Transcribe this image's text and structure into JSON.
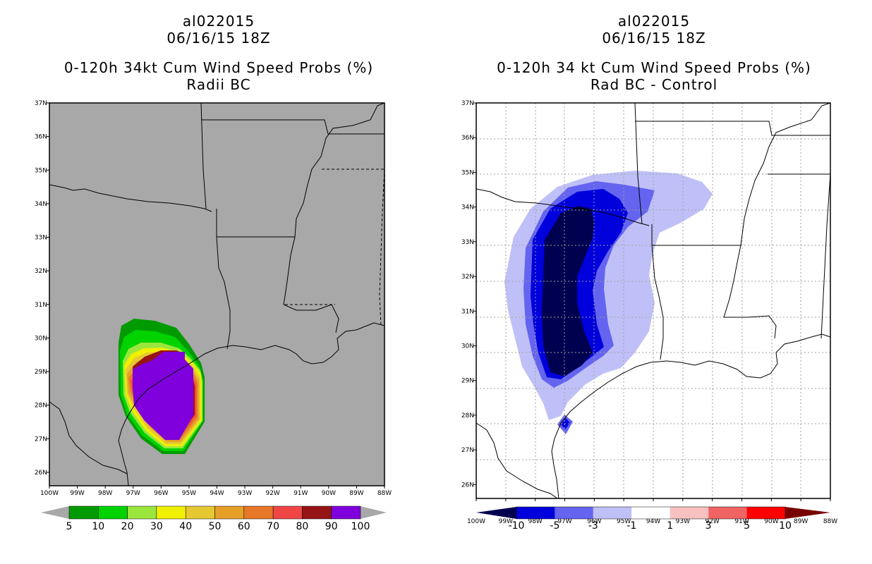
{
  "chart_data": [
    {
      "type": "filled-contour-map",
      "title_lines": [
        "al022015",
        "06/16/15 18Z",
        "0-120h 34kt Cum Wind Speed Probs (%)",
        "Radii BC"
      ],
      "x_ticks": [
        "100W",
        "99W",
        "98W",
        "97W",
        "96W",
        "95W",
        "94W",
        "93W",
        "92W",
        "91W",
        "90W",
        "89W",
        "88W"
      ],
      "y_ticks": [
        "37N",
        "36N",
        "35N",
        "34N",
        "33N",
        "32N",
        "31N",
        "30N",
        "29N",
        "28N",
        "27N",
        "26N"
      ],
      "lon_range": [
        -100,
        -88
      ],
      "lat_range": [
        25.6,
        37
      ],
      "grid": false,
      "background": "#a8a8a8",
      "colorbar": {
        "labels": [
          "5",
          "10",
          "20",
          "30",
          "40",
          "50",
          "60",
          "70",
          "80",
          "90",
          "100"
        ],
        "colors": [
          "#009b00",
          "#00d300",
          "#9be63c",
          "#f0f000",
          "#e6c832",
          "#e6a028",
          "#e67828",
          "#f04646",
          "#961414",
          "#7f00dc"
        ]
      }
    },
    {
      "type": "filled-contour-map",
      "title_lines": [
        "al022015",
        "06/16/15 18Z",
        "0-120h 34 kt Cum Wind Speed Probs (%)",
        "Rad BC - Control"
      ],
      "x_ticks": [
        "100W",
        "99W",
        "98W",
        "97W",
        "96W",
        "95W",
        "94W",
        "93W",
        "92W",
        "91W",
        "90W",
        "89W",
        "88W"
      ],
      "y_ticks": [
        "37N",
        "36N",
        "35N",
        "34N",
        "33N",
        "32N",
        "31N",
        "30N",
        "29N",
        "28N",
        "27N",
        "26N"
      ],
      "lon_range": [
        -100,
        -88
      ],
      "lat_range": [
        25.6,
        37
      ],
      "grid": true,
      "background": "#ffffff",
      "colorbar": {
        "labels": [
          "-10",
          "-5",
          "-3",
          "-1",
          "1",
          "3",
          "5",
          "10"
        ],
        "colors": [
          "#000050",
          "#0000dc",
          "#6464f0",
          "#c0c0f8",
          "#ffffff",
          "#f8c0c0",
          "#f06464",
          "#ff0000",
          "#780000"
        ]
      }
    }
  ]
}
